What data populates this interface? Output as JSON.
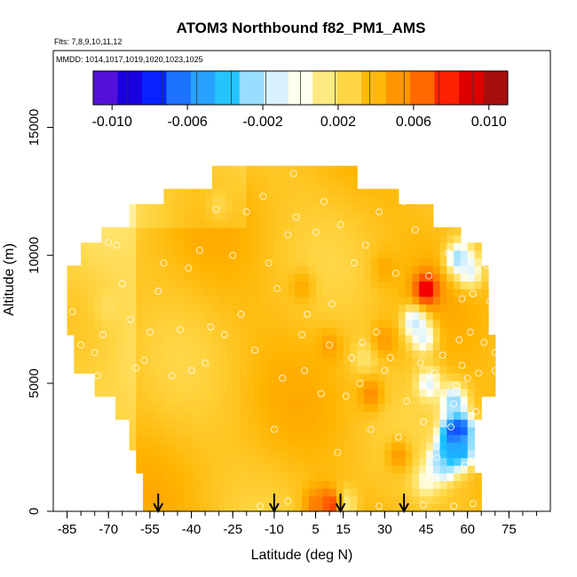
{
  "chart_data": {
    "type": "heatmap",
    "title": "ATOM3 Northbound f82_PM1_AMS",
    "subtitle_flights": "Flts: 7,8,9,10,11,12",
    "subtitle_dates": "MMDD: 1014,1017,1019,1020,1023,1025",
    "xlabel": "Latitude (deg N)",
    "ylabel": "Altitude (m)",
    "xlim": [
      -90,
      90
    ],
    "ylim": [
      0,
      18000
    ],
    "x_tick_labels": [
      "-85",
      "-70",
      "-55",
      "-40",
      "-25",
      "-10",
      "5",
      "15",
      "30",
      "45",
      "60",
      "75"
    ],
    "x_tick_values": [
      -85,
      -70,
      -55,
      -40,
      -25,
      -10,
      5,
      15,
      30,
      45,
      60,
      75
    ],
    "y_tick_labels": [
      "0",
      "5000",
      "10000",
      "15000"
    ],
    "y_tick_values": [
      0,
      5000,
      10000,
      15000
    ],
    "colorbar": {
      "range": [
        -0.011,
        0.011
      ],
      "tick_labels": [
        "-0.010",
        "-0.006",
        "-0.002",
        "0.002",
        "0.006",
        "0.010"
      ],
      "tick_values": [
        -0.01,
        -0.006,
        -0.002,
        0.002,
        0.006,
        0.01
      ],
      "colors": [
        "#7a1fe6",
        "#2a00cc",
        "#0000ff",
        "#1460ff",
        "#2e9bff",
        "#0fbfff",
        "#8fdcff",
        "#d6f0ff",
        "#fffff0",
        "#ffe87a",
        "#ffd23c",
        "#ffb400",
        "#ff8c00",
        "#ff5a00",
        "#ff0000",
        "#c80000",
        "#8c1a1a"
      ]
    },
    "flight_legs_latitude": [
      -52,
      -10,
      14,
      37
    ],
    "data_extent": {
      "lat_min": -85,
      "lat_max": 72,
      "alt_min": 0,
      "alt_max": 13500,
      "background_value": 0.0035
    },
    "features": [
      {
        "lat": 57,
        "alt": 3200,
        "value": -0.009
      },
      {
        "lat": 55,
        "alt": 3000,
        "value": -0.008
      },
      {
        "lat": 53,
        "alt": 2200,
        "value": -0.006
      },
      {
        "lat": 58,
        "alt": 2400,
        "value": -0.005
      },
      {
        "lat": 55,
        "alt": 4300,
        "value": -0.003
      },
      {
        "lat": 50,
        "alt": 1800,
        "value": -0.003
      },
      {
        "lat": 46,
        "alt": 5000,
        "value": -0.001
      },
      {
        "lat": 41,
        "alt": 7400,
        "value": -0.002
      },
      {
        "lat": 44,
        "alt": 6800,
        "value": -0.001
      },
      {
        "lat": 57,
        "alt": 9900,
        "value": -0.003
      },
      {
        "lat": 61,
        "alt": 9400,
        "value": -0.001
      },
      {
        "lat": 45,
        "alt": 8700,
        "value": 0.009
      },
      {
        "lat": 23,
        "alt": 6000,
        "value": 0.0015
      },
      {
        "lat": 45,
        "alt": 1200,
        "value": 0.0
      },
      {
        "lat": 15,
        "alt": 250,
        "value": 0.0
      },
      {
        "lat": 10,
        "alt": 250,
        "value": 0.008
      },
      {
        "lat": 5,
        "alt": 250,
        "value": 0.006
      },
      {
        "lat": 30,
        "alt": 9500,
        "value": 0.0045
      },
      {
        "lat": 25,
        "alt": 4600,
        "value": 0.0055
      },
      {
        "lat": 30,
        "alt": 6700,
        "value": 0.005
      },
      {
        "lat": 10,
        "alt": 6500,
        "value": 0.0048
      },
      {
        "lat": 35,
        "alt": 2200,
        "value": 0.005
      },
      {
        "lat": 0,
        "alt": 8800,
        "value": 0.0045
      },
      {
        "lat": -70,
        "alt": 8000,
        "value": 0.002
      },
      {
        "lat": -30,
        "alt": 12000,
        "value": 0.0025
      }
    ],
    "sample_points": [
      [
        -83,
        7800
      ],
      [
        -80,
        6500
      ],
      [
        -75,
        6200
      ],
      [
        -74,
        5300
      ],
      [
        -72,
        6900
      ],
      [
        -70,
        10500
      ],
      [
        -67,
        10400
      ],
      [
        -65,
        8900
      ],
      [
        -62,
        7500
      ],
      [
        -60,
        5600
      ],
      [
        -57,
        5900
      ],
      [
        -55,
        7000
      ],
      [
        -52,
        8600
      ],
      [
        -50,
        9700
      ],
      [
        -47,
        5300
      ],
      [
        -44,
        7100
      ],
      [
        -41,
        9500
      ],
      [
        -40,
        5500
      ],
      [
        -37,
        10200
      ],
      [
        -35,
        5800
      ],
      [
        -33,
        7200
      ],
      [
        -31,
        11800
      ],
      [
        -28,
        6900
      ],
      [
        -25,
        10000
      ],
      [
        -22,
        7700
      ],
      [
        -20,
        11700
      ],
      [
        -17,
        6300
      ],
      [
        -14,
        12300
      ],
      [
        -12,
        9700
      ],
      [
        -10,
        3200
      ],
      [
        -9,
        8700
      ],
      [
        -7,
        5200
      ],
      [
        -5,
        10800
      ],
      [
        -2,
        11500
      ],
      [
        0,
        6900
      ],
      [
        1,
        5500
      ],
      [
        2,
        7700
      ],
      [
        5,
        10900
      ],
      [
        7,
        4600
      ],
      [
        8,
        12100
      ],
      [
        10,
        6500
      ],
      [
        11,
        8100
      ],
      [
        13,
        2300
      ],
      [
        14,
        11200
      ],
      [
        16,
        4500
      ],
      [
        18,
        6000
      ],
      [
        19,
        9700
      ],
      [
        21,
        5000
      ],
      [
        22,
        6600
      ],
      [
        23,
        10400
      ],
      [
        25,
        3200
      ],
      [
        27,
        7000
      ],
      [
        28,
        11700
      ],
      [
        30,
        5500
      ],
      [
        32,
        6000
      ],
      [
        34,
        9300
      ],
      [
        35,
        2900
      ],
      [
        37,
        12100
      ],
      [
        38,
        4300
      ],
      [
        40,
        7600
      ],
      [
        41,
        11000
      ],
      [
        43,
        5800
      ],
      [
        44,
        3500
      ],
      [
        46,
        9200
      ],
      [
        48,
        5400
      ],
      [
        49,
        2100
      ],
      [
        51,
        6100
      ],
      [
        53,
        10100
      ],
      [
        54,
        3300
      ],
      [
        55,
        4200
      ],
      [
        56,
        4700
      ],
      [
        57,
        6700
      ],
      [
        58,
        8300
      ],
      [
        59,
        1800
      ],
      [
        60,
        5200
      ],
      [
        61,
        7000
      ],
      [
        62,
        8500
      ],
      [
        63,
        3900
      ],
      [
        64,
        5400
      ],
      [
        66,
        6600
      ],
      [
        67,
        9600
      ],
      [
        68,
        8200
      ],
      [
        70,
        6200
      ],
      [
        70,
        5500
      ],
      [
        -3,
        13200
      ],
      [
        58,
        5700
      ],
      [
        56,
        4900
      ],
      [
        -15,
        200
      ],
      [
        -5,
        400
      ],
      [
        28,
        200
      ],
      [
        44,
        250
      ],
      [
        55,
        200
      ],
      [
        62,
        300
      ]
    ]
  }
}
